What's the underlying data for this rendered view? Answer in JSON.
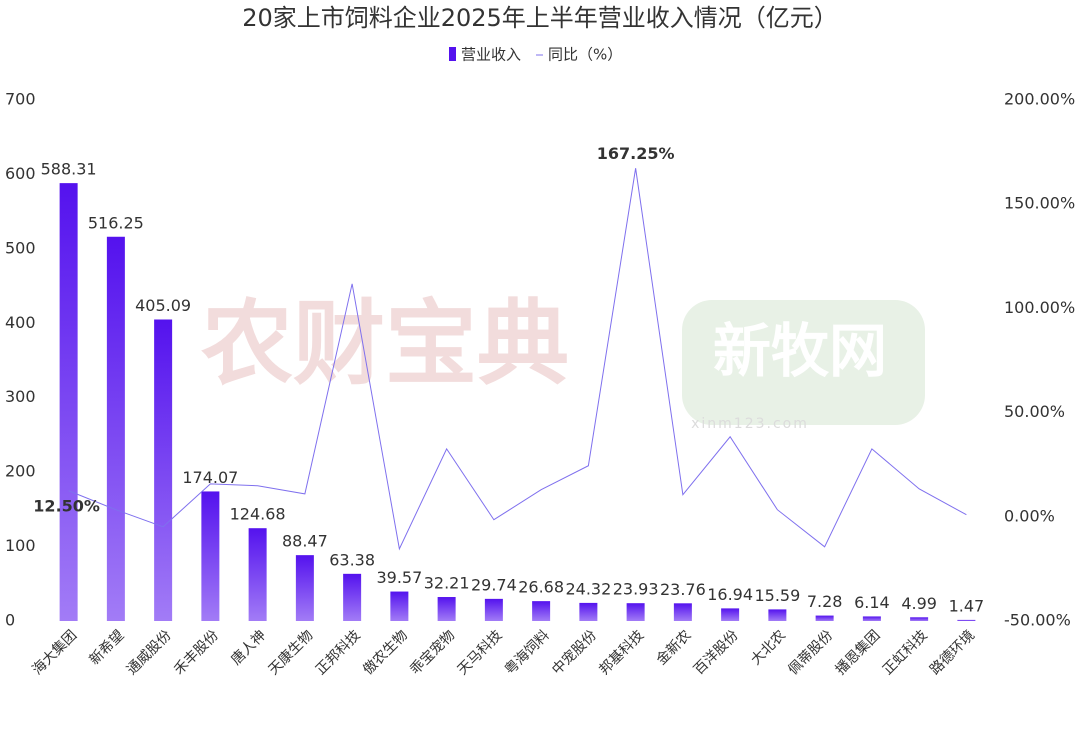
{
  "chart_data": {
    "type": "bar-line",
    "title": "20家上市饲料企业2025年上半年营业收入情况（亿元）",
    "watermarks": [
      "农财宝典",
      "新牧网",
      "xinm123.com"
    ],
    "categories": [
      "海大集团",
      "新希望",
      "通威股份",
      "禾丰股份",
      "唐人神",
      "天康生物",
      "正邦科技",
      "傲农生物",
      "乖宝宠物",
      "天马科技",
      "粤海饲料",
      "中宠股份",
      "邦基科技",
      "金新农",
      "百洋股份",
      "大北农",
      "佩蒂股份",
      "播恩集团",
      "正虹科技",
      "路德环境"
    ],
    "series": [
      {
        "name": "营业收入",
        "type": "bar",
        "color": "#5412ee",
        "color_to": "#a27cf6",
        "values": [
          588.31,
          516.25,
          405.09,
          174.07,
          124.68,
          88.47,
          63.38,
          39.57,
          32.21,
          29.74,
          26.68,
          24.32,
          23.93,
          23.76,
          16.94,
          15.59,
          7.28,
          6.14,
          4.99,
          1.47
        ]
      },
      {
        "name": "同比（%）",
        "type": "line",
        "axis": "y2",
        "color": "#7f70ee",
        "values": [
          12.5,
          3.4,
          -4.8,
          15.8,
          14.9,
          11,
          111.8,
          -15.4,
          32.6,
          -1.4,
          13,
          24.5,
          167.25,
          10.6,
          38.4,
          3.4,
          -14.4,
          32.6,
          13.4,
          1
        ],
        "value_labels": [
          "12.50%",
          null,
          null,
          null,
          null,
          null,
          null,
          null,
          null,
          null,
          null,
          null,
          "167.25%",
          null,
          null,
          null,
          null,
          null,
          null,
          null
        ]
      }
    ],
    "ylim": [
      0,
      700
    ],
    "yticks": [
      0,
      100,
      200,
      300,
      400,
      500,
      600,
      700
    ],
    "y2lim": [
      -50,
      200
    ],
    "y2ticks": [
      {
        "value": -50,
        "label": "-50.00%"
      },
      {
        "value": 0,
        "label": "0.00%"
      },
      {
        "value": 50,
        "label": "50.00%"
      },
      {
        "value": 100,
        "label": "100.00%"
      },
      {
        "value": 150,
        "label": "150.00%"
      },
      {
        "value": 200,
        "label": "200.00%"
      }
    ],
    "legend": "top"
  }
}
